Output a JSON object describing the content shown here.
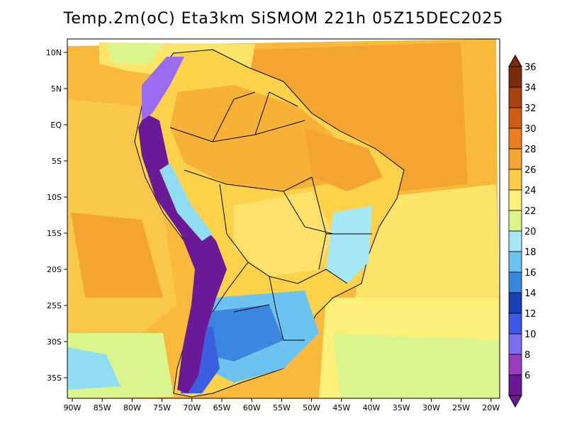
{
  "title": "Temp.2m(oC) Eta3km SiSMOM 221h 05Z15DEC2025",
  "lon_labels": [
    "90W",
    "85W",
    "80W",
    "75W",
    "70W",
    "65W",
    "60W",
    "55W",
    "50W",
    "45W",
    "40W",
    "35W",
    "30W",
    "25W",
    "20W"
  ],
  "lat_labels": [
    "10N",
    "5N",
    "EQ",
    "5S",
    "10S",
    "15S",
    "20S",
    "25S",
    "30S",
    "35S"
  ],
  "colorbar": {
    "labels": [
      "36",
      "34",
      "32",
      "30",
      "28",
      "26",
      "24",
      "22",
      "20",
      "18",
      "16",
      "14",
      "12",
      "10",
      "8",
      "6"
    ],
    "colors": [
      "#7a2b0c",
      "#a8410f",
      "#d05b12",
      "#ee7d21",
      "#f5a533",
      "#fbce4a",
      "#fdf07a",
      "#d9f58c",
      "#a6e7f5",
      "#6cc2f0",
      "#3688df",
      "#1b3fb6",
      "#3b58e6",
      "#7b6ff0",
      "#9b3dbf",
      "#6a1a96"
    ]
  }
}
